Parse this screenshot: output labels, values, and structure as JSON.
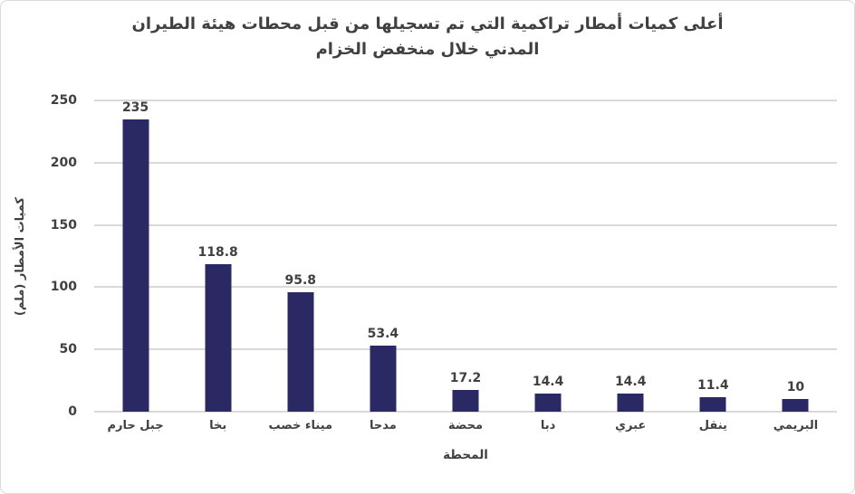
{
  "window": {
    "background": "#FFFFFF",
    "border_color": "#D9D9D9"
  },
  "title": {
    "line1": "أعلى كميات أمطار تراكمية التي تم تسجيلها من قبل محطات هيئة الطيران",
    "line2": "المدني خلال منخفض الخزام"
  },
  "chart_data": {
    "type": "bar",
    "title": "أعلى كميات أمطار تراكمية التي تم تسجيلها من قبل محطات هيئة الطيران المدني خلال منخفض الخزام",
    "categories": [
      "جبل حارم",
      "بخا",
      "ميناء خصب",
      "مدحا",
      "محضة",
      "دبا",
      "عبري",
      "ينقل",
      "البريمي"
    ],
    "values": [
      235,
      118.8,
      95.8,
      53.4,
      17.2,
      14.4,
      14.4,
      11.4,
      10
    ],
    "value_labels": [
      "235",
      "118.8",
      "95.8",
      "53.4",
      "17.2",
      "14.4",
      "14.4",
      "11.4",
      "10"
    ],
    "xlabel": "المحطة",
    "ylabel": "كميات الأمطار (ملم)",
    "ylim": [
      0,
      250
    ],
    "yticks": [
      0,
      50,
      100,
      150,
      200,
      250
    ],
    "grid": true,
    "legend": false,
    "rtl_labels": true,
    "colors": {
      "bar": "#2A2963",
      "grid": "#D9D9D9",
      "axis_line": "#D9D9D9",
      "text": "#404040"
    }
  }
}
